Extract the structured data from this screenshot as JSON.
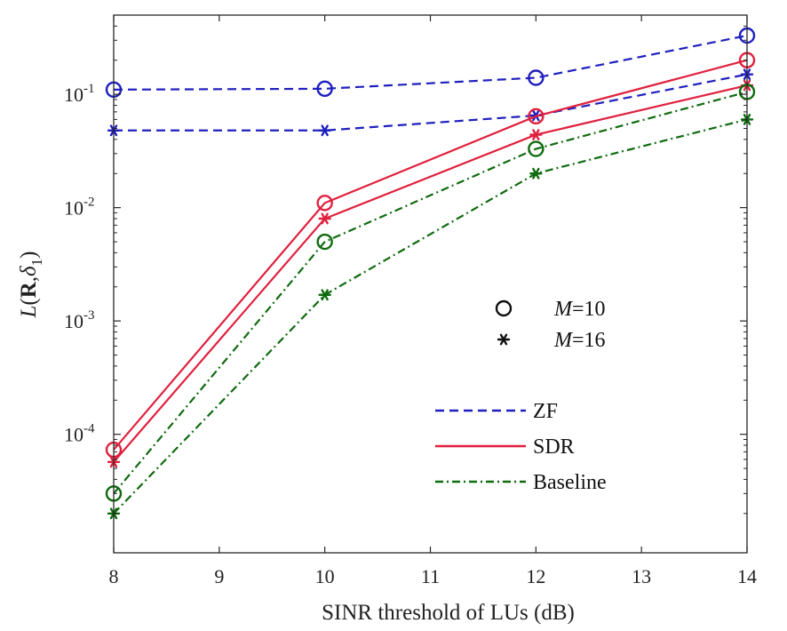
{
  "chart_data": {
    "type": "line",
    "title": "",
    "xlabel": "SINR threshold of LUs (dB)",
    "ylabel": "L(R,δ1)",
    "ylabel_parts": {
      "func": "L",
      "open": "(",
      "bold": "R",
      "comma": ",",
      "delta": "δ",
      "sub": "1",
      "close": ")"
    },
    "xscale": "linear",
    "yscale": "log",
    "xlim": [
      8,
      14
    ],
    "ylim": [
      9e-06,
      0.5
    ],
    "x_ticks": [
      8,
      9,
      10,
      11,
      12,
      13,
      14
    ],
    "x_tick_labels": [
      "8",
      "9",
      "10",
      "11",
      "12",
      "13",
      "14"
    ],
    "y_ticks": [
      {
        "value": 0.1,
        "base": "10",
        "exp": "-1"
      },
      {
        "value": 0.01,
        "base": "10",
        "exp": "-2"
      },
      {
        "value": 0.001,
        "base": "10",
        "exp": "-3"
      },
      {
        "value": 0.0001,
        "base": "10",
        "exp": "-4"
      }
    ],
    "grid": false,
    "series": [
      {
        "name": "ZF, M=10",
        "method": "ZF",
        "marker": "circle",
        "color": "#1f1fbf",
        "dash": "dashed",
        "x": [
          8,
          10,
          12,
          14
        ],
        "values": [
          0.11,
          0.112,
          0.14,
          0.33
        ]
      },
      {
        "name": "ZF, M=16",
        "method": "ZF",
        "marker": "star",
        "color": "#1f1fbf",
        "dash": "dashed",
        "x": [
          8,
          10,
          12,
          14
        ],
        "values": [
          0.048,
          0.048,
          0.065,
          0.15
        ]
      },
      {
        "name": "SDR, M=10",
        "method": "SDR",
        "marker": "circle",
        "color": "#e0213e",
        "dash": "solid",
        "x": [
          8,
          10,
          12,
          14
        ],
        "values": [
          7.3e-05,
          0.011,
          0.064,
          0.2
        ]
      },
      {
        "name": "SDR, M=16",
        "method": "SDR",
        "marker": "star",
        "color": "#e0213e",
        "dash": "solid",
        "x": [
          8,
          10,
          12,
          14
        ],
        "values": [
          5.7e-05,
          0.008,
          0.044,
          0.12
        ]
      },
      {
        "name": "Baseline, M=10",
        "method": "Baseline",
        "marker": "circle",
        "color": "#0f6b0f",
        "dash": "dashdot",
        "x": [
          8,
          10,
          12,
          14
        ],
        "values": [
          3e-05,
          0.005,
          0.033,
          0.105
        ]
      },
      {
        "name": "Baseline, M=16",
        "method": "Baseline",
        "marker": "star",
        "color": "#0f6b0f",
        "dash": "dashdot",
        "x": [
          8,
          10,
          12,
          14
        ],
        "values": [
          2e-05,
          0.0017,
          0.02,
          0.06
        ]
      }
    ],
    "legend_markers": [
      {
        "marker": "circle",
        "label_italic": "M",
        "label_rest": "=10"
      },
      {
        "marker": "star",
        "label_italic": "M",
        "label_rest": "=16"
      }
    ],
    "legend_lines": [
      {
        "label": "ZF",
        "color": "#1f1fbf",
        "dash": "dashed"
      },
      {
        "label": "SDR",
        "color": "#e0213e",
        "dash": "solid"
      },
      {
        "label": "Baseline",
        "color": "#0f6b0f",
        "dash": "dashdot"
      }
    ],
    "legend_placement": "inside-right"
  }
}
